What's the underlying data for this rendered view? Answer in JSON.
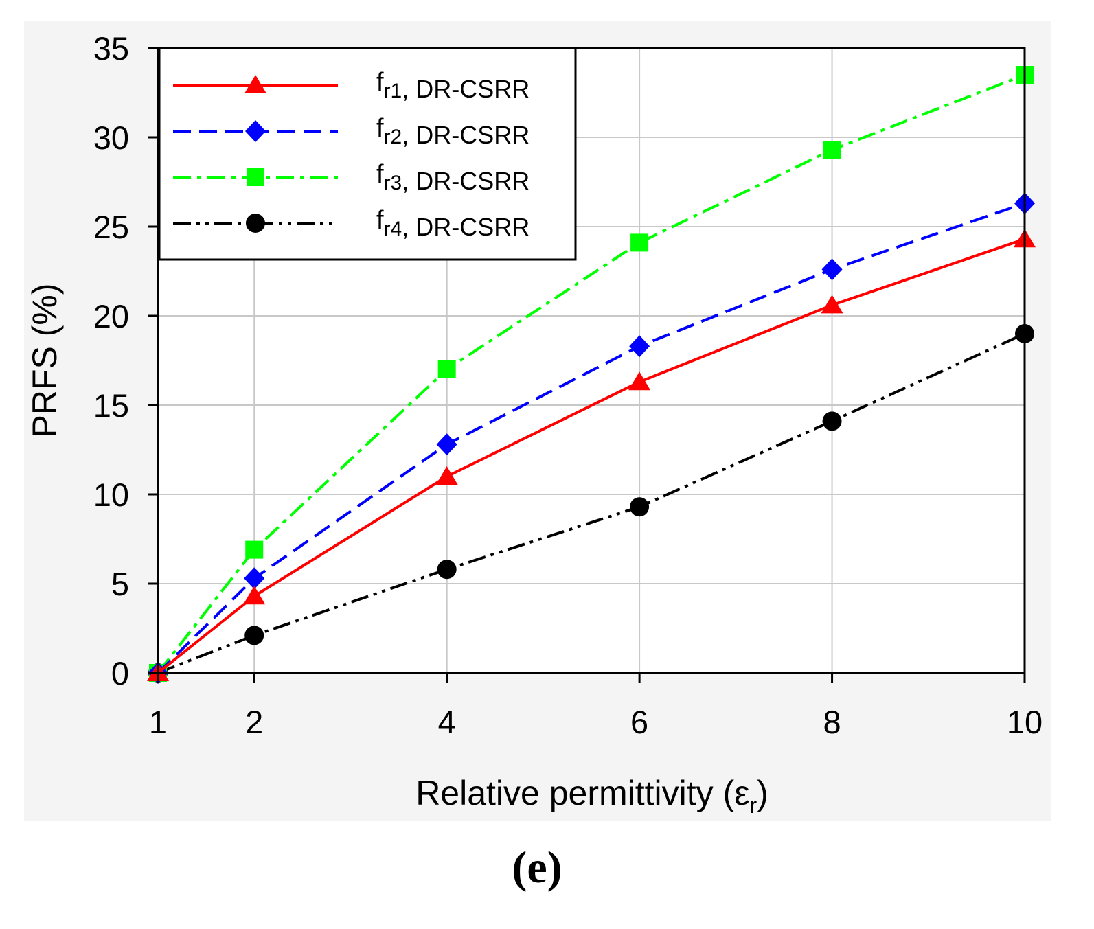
{
  "chart_data": {
    "type": "line",
    "title": "",
    "xlabel": "Relative permittivity (ε",
    "xlabel_sub": "r",
    "xlabel_end": ")",
    "ylabel": "PRFS (%)",
    "panel_label": "(e)",
    "xlim": [
      1,
      10
    ],
    "ylim": [
      0,
      35
    ],
    "xticks": [
      1,
      2,
      4,
      6,
      8,
      10
    ],
    "yticks": [
      0,
      5,
      10,
      15,
      20,
      25,
      30,
      35
    ],
    "grid": true,
    "legend_position": "top-left",
    "x": [
      1,
      2,
      4,
      6,
      8,
      10
    ],
    "series": [
      {
        "name": "fr1, DR-CSRR",
        "label_main": "f",
        "label_sub": "r1",
        "label_rest": ", DR-CSRR",
        "values": [
          0,
          4.3,
          11.0,
          16.3,
          20.6,
          24.3
        ],
        "color": "#ff0000",
        "marker": "triangle",
        "dash": "solid"
      },
      {
        "name": "fr2, DR-CSRR",
        "label_main": "f",
        "label_sub": "r2",
        "label_rest": ", DR-CSRR",
        "values": [
          0,
          5.3,
          12.8,
          18.3,
          22.6,
          26.3
        ],
        "color": "#0000ff",
        "marker": "diamond",
        "dash": "dash"
      },
      {
        "name": "fr3, DR-CSRR",
        "label_main": "f",
        "label_sub": "r3",
        "label_rest": ", DR-CSRR",
        "values": [
          0,
          6.9,
          17.0,
          24.1,
          29.3,
          33.5
        ],
        "color": "#00ff00",
        "marker": "square",
        "dash": "dashdot"
      },
      {
        "name": "fr4, DR-CSRR",
        "label_main": "f",
        "label_sub": "r4",
        "label_rest": ", DR-CSRR",
        "values": [
          0,
          2.1,
          5.8,
          9.3,
          14.1,
          19.0
        ],
        "color": "#000000",
        "marker": "circle",
        "dash": "dashdotdot"
      }
    ]
  }
}
